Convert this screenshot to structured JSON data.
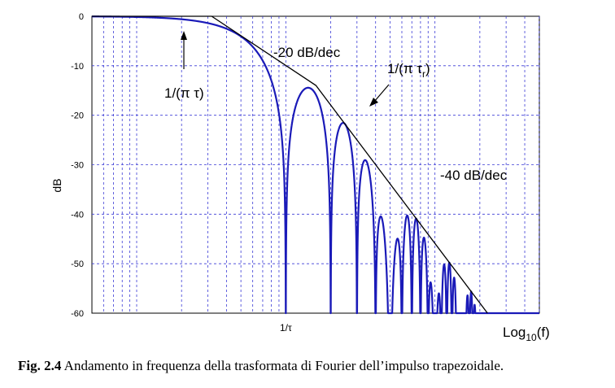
{
  "chart_data": {
    "type": "line",
    "xlabel": "Log10(f)",
    "xlabel_main": "Log",
    "xlabel_sub": "10",
    "xlabel_tail": "(f)",
    "ylabel": "dB",
    "ylim": [
      -60,
      0
    ],
    "yticks": [
      "0",
      "-10",
      "-20",
      "-30",
      "-40",
      "-50",
      "-60"
    ],
    "xscale": "log",
    "xlim_decades": [
      -1.3,
      1.7
    ],
    "xtick_label": "1/τ",
    "grid": true,
    "tau": 1,
    "tau_r": 0.2,
    "corner_annotations": [
      {
        "text": "1/(π τ)",
        "pointer": "arrow-up"
      },
      {
        "text": "1/(π τ",
        "sub": "r",
        "tail": ")",
        "pointer": "arrow-down-left"
      }
    ],
    "slope_annotations": [
      "-20 dB/dec",
      "-40 dB/dec"
    ],
    "series": [
      {
        "kind": "spectrum-magnitude",
        "color": "#1a1ab8"
      },
      {
        "kind": "asymptotic-envelope",
        "color": "#000000"
      }
    ]
  },
  "caption": {
    "label": "Fig. 2.4",
    "text": " Andamento in frequenza della trasformata di Fourier dell’impulso trapezoidale."
  }
}
